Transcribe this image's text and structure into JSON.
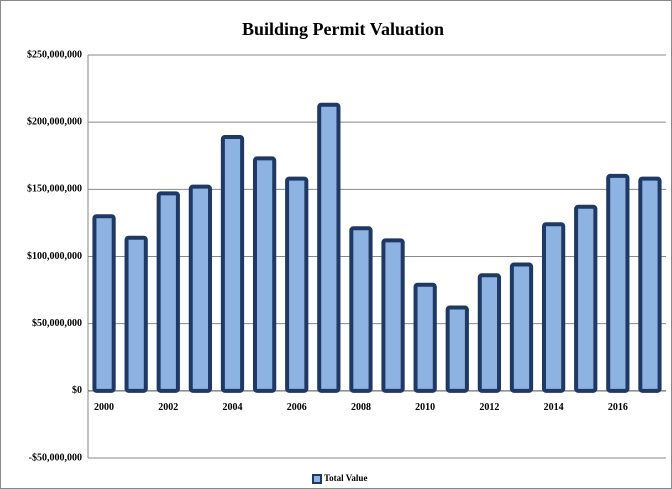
{
  "chart_data": {
    "type": "bar",
    "title": "Building Permit Valuation",
    "categories": [
      "2000",
      null,
      "2002",
      null,
      "2004",
      null,
      "2006",
      null,
      "2008",
      null,
      "2010",
      null,
      "2012",
      null,
      "2014",
      null,
      "2016",
      null
    ],
    "series": [
      {
        "name": "Total Value",
        "color": "#8db3e2",
        "values": [
          130000000,
          114000000,
          147000000,
          152000000,
          189000000,
          173000000,
          158000000,
          213000000,
          121000000,
          112000000,
          79000000,
          62000000,
          86000000,
          94000000,
          124000000,
          137000000,
          160000000,
          158000000
        ]
      }
    ],
    "ylim": [
      -50000000,
      250000000
    ],
    "yticks": [
      {
        "value": -50000000,
        "label": "-$50,000,000"
      },
      {
        "value": 0,
        "label": "$0"
      },
      {
        "value": 50000000,
        "label": "$50,000,000"
      },
      {
        "value": 100000000,
        "label": "$100,000,000"
      },
      {
        "value": 150000000,
        "label": "$150,000,000"
      },
      {
        "value": 200000000,
        "label": "$200,000,000"
      },
      {
        "value": 250000000,
        "label": "$250,000,000"
      }
    ],
    "grid": true,
    "legend": "bottom"
  }
}
